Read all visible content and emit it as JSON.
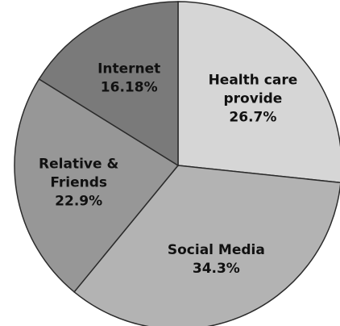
{
  "chart_data": {
    "type": "pie",
    "title": "",
    "start_angle_deg": -90,
    "direction": "clockwise",
    "slices": [
      {
        "label_lines": [
          "Health care",
          "provide"
        ],
        "percent_label": "26.7%",
        "value": 26.7,
        "color": "#d6d6d6"
      },
      {
        "label_lines": [
          "Social Media"
        ],
        "percent_label": "34.3%",
        "value": 34.3,
        "color": "#b3b3b3"
      },
      {
        "label_lines": [
          "Relative &",
          "Friends"
        ],
        "percent_label": "22.9%",
        "value": 22.9,
        "color": "#979797"
      },
      {
        "label_lines": [
          "Internet"
        ],
        "percent_label": "16.18%",
        "value": 16.18,
        "color": "#7a7a7a"
      }
    ]
  }
}
